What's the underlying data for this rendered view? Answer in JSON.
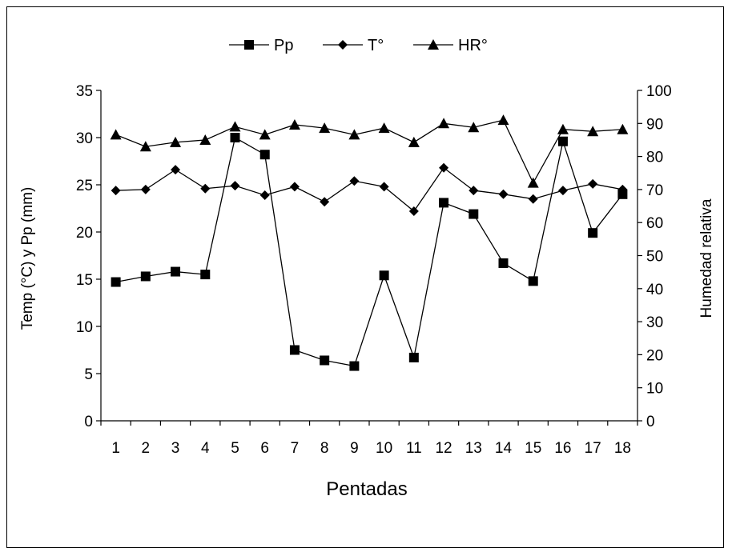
{
  "chart_data": {
    "type": "line",
    "x": [
      1,
      2,
      3,
      4,
      5,
      6,
      7,
      8,
      9,
      10,
      11,
      12,
      13,
      14,
      15,
      16,
      17,
      18
    ],
    "xlabel": "Pentadas",
    "ylabel": "Temp (°C) y Pp (mm)",
    "y2label": "Humedad relativa",
    "ylim": [
      0,
      35
    ],
    "y2lim": [
      0,
      100
    ],
    "yticks": [
      0,
      5,
      10,
      15,
      20,
      25,
      30,
      35
    ],
    "y2ticks": [
      0,
      10,
      20,
      30,
      40,
      50,
      60,
      70,
      80,
      90,
      100
    ],
    "legend_position": "top-center",
    "grid": false,
    "series": [
      {
        "name": "Pp",
        "axis": "left",
        "marker": "square",
        "color": "#000000",
        "values": [
          14.7,
          15.3,
          15.8,
          15.5,
          30.0,
          28.2,
          7.5,
          6.4,
          5.8,
          15.4,
          6.7,
          23.1,
          21.9,
          16.7,
          14.8,
          29.6,
          19.9,
          24.0
        ]
      },
      {
        "name": "T°",
        "axis": "left",
        "marker": "diamond",
        "color": "#000000",
        "values": [
          24.4,
          24.5,
          26.6,
          24.6,
          24.9,
          23.9,
          24.8,
          23.2,
          25.4,
          24.8,
          22.2,
          26.8,
          24.4,
          24.0,
          23.5,
          24.4,
          25.1,
          24.5
        ]
      },
      {
        "name": "HR°",
        "axis": "right",
        "marker": "triangle",
        "color": "#000000",
        "values": [
          86.6,
          83.0,
          84.3,
          85.0,
          89.0,
          86.6,
          89.6,
          88.6,
          86.6,
          88.6,
          84.3,
          90.0,
          88.8,
          91.0,
          72.0,
          88.2,
          87.6,
          88.2
        ]
      }
    ]
  }
}
